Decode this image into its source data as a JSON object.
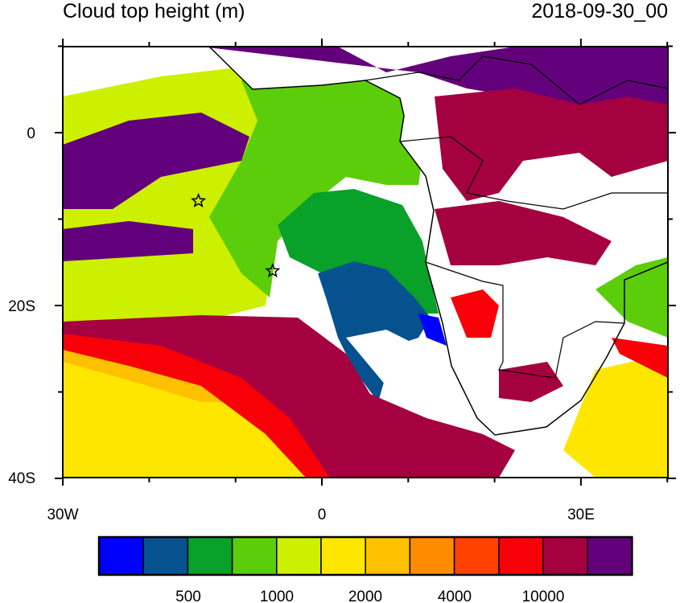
{
  "title": "Cloud top height (m)",
  "date": "2018-09-30_00",
  "chart_data": {
    "type": "heatmap",
    "title": "Cloud top height (m)",
    "subtitle": "2018-09-30_00",
    "x_ticks": [
      "30W",
      "0",
      "30E"
    ],
    "y_ticks": [
      "0",
      "20S",
      "40S"
    ],
    "lon_range": [
      -30,
      40
    ],
    "lat_range": [
      -40,
      10
    ],
    "colorbar": {
      "colors": [
        "#0000ff",
        "#05528f",
        "#09a12a",
        "#5ccd0a",
        "#cdef00",
        "#ffe600",
        "#ffc000",
        "#ff8c00",
        "#ff4200",
        "#f70008",
        "#a5003f",
        "#63007b"
      ],
      "labels": [
        "500",
        "1000",
        "2000",
        "4000",
        "10000"
      ]
    },
    "markers": [
      {
        "symbol": "star",
        "lon": -14.3,
        "lat": -7.9
      },
      {
        "symbol": "star",
        "lon": -5.7,
        "lat": -16.0
      }
    ]
  }
}
